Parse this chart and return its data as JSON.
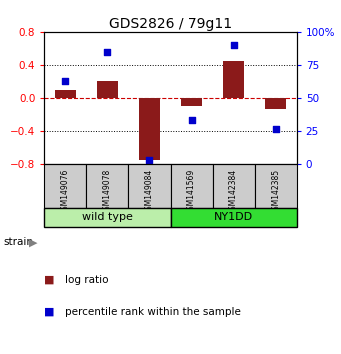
{
  "title": "GDS2826 / 79g11",
  "samples": [
    "GSM149076",
    "GSM149078",
    "GSM149084",
    "GSM141569",
    "GSM142384",
    "GSM142385"
  ],
  "log_ratios": [
    0.1,
    0.2,
    -0.76,
    -0.1,
    0.45,
    -0.14
  ],
  "percentile_ranks": [
    63,
    85,
    3,
    33,
    90,
    26
  ],
  "groups": [
    {
      "label": "wild type",
      "start": 0,
      "end": 3,
      "color": "#bbeeaa"
    },
    {
      "label": "NY1DD",
      "start": 3,
      "end": 6,
      "color": "#33dd33"
    }
  ],
  "ylim": [
    -0.8,
    0.8
  ],
  "y_ticks_left": [
    -0.8,
    -0.4,
    0.0,
    0.4,
    0.8
  ],
  "y_ticks_right": [
    0,
    25,
    50,
    75,
    100
  ],
  "bar_color": "#8B1A1A",
  "dot_color": "#0000cc",
  "bar_width": 0.5,
  "dot_size": 25,
  "sample_cell_color": "#cccccc",
  "background_color": "#ffffff",
  "zero_line_color": "#cc0000",
  "dotted_line_color": "#000000"
}
